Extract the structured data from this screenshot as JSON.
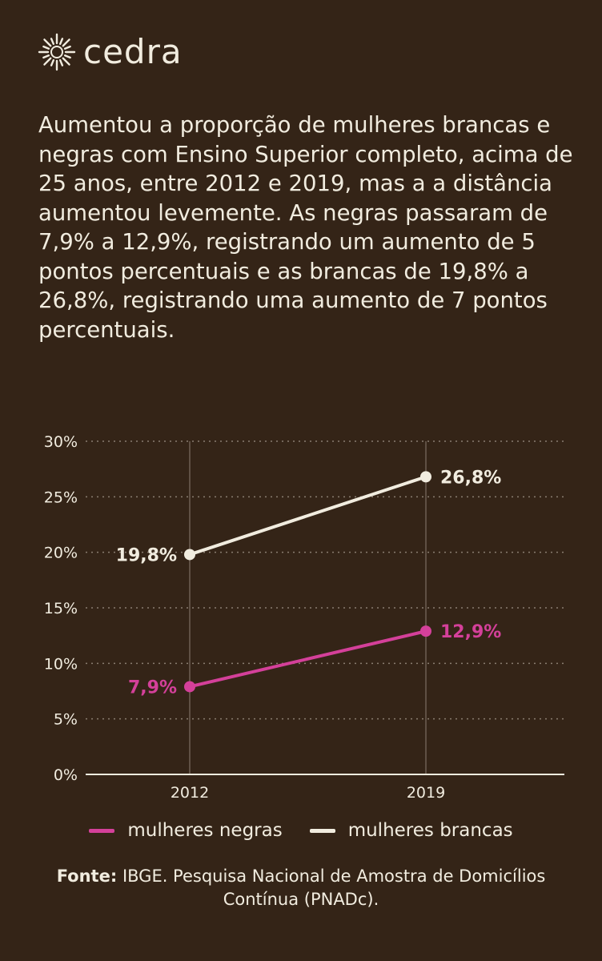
{
  "brand": {
    "name": "cedra"
  },
  "intro_text": "Aumentou a proporção de mulheres brancas e negras com Ensino Superior completo, acima de 25 anos, entre 2012 e 2019, mas a a distância aumentou levemente. As negras passaram de 7,9% a 12,9%, registrando um aumento de 5 pontos percentuais e as brancas de 19,8% a 26,8%, registrando uma aumento de 7 pontos percentuais.",
  "colors": {
    "background": "#342417",
    "text": "#f1ecdf",
    "negras": "#d4409a",
    "brancas": "#f1ecdf",
    "grid": "#8a7d70"
  },
  "chart_data": {
    "type": "line",
    "x": [
      "2012",
      "2019"
    ],
    "ylim": [
      0,
      30
    ],
    "yticks": [
      0,
      5,
      10,
      15,
      20,
      25,
      30
    ],
    "ytick_labels": [
      "0%",
      "5%",
      "10%",
      "15%",
      "20%",
      "25%",
      "30%"
    ],
    "grid": "horizontal dotted",
    "series": [
      {
        "name": "mulheres negras",
        "color": "#d4409a",
        "values": [
          7.9,
          12.9
        ],
        "labels": [
          "7,9%",
          "12,9%"
        ]
      },
      {
        "name": "mulheres brancas",
        "color": "#f1ecdf",
        "values": [
          19.8,
          26.8
        ],
        "labels": [
          "19,8%",
          "26,8%"
        ]
      }
    ]
  },
  "legend": [
    {
      "label": "mulheres negras",
      "color": "#d4409a"
    },
    {
      "label": "mulheres brancas",
      "color": "#f1ecdf"
    }
  ],
  "source": {
    "label": "Fonte:",
    "text": "IBGE. Pesquisa Nacional de Amostra de Domicílios Contínua (PNADc)."
  }
}
